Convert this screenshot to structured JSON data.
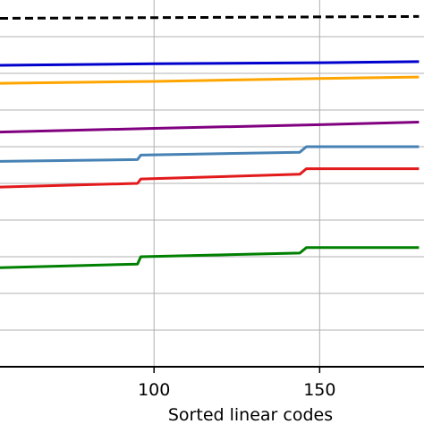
{
  "chart_data": {
    "type": "line",
    "xlabel": "Sorted linear codes",
    "ylabel": "",
    "title": "",
    "xlim": [
      53.5,
      181.5
    ],
    "ylim": [
      0,
      1
    ],
    "x_ticks": [
      {
        "value": 100,
        "label": "100"
      },
      {
        "value": 150,
        "label": "150"
      }
    ],
    "y_gridlines": [
      0.1,
      0.2,
      0.3,
      0.4,
      0.5,
      0.6,
      0.7,
      0.8,
      0.9
    ],
    "grid": true,
    "legend": "none",
    "series": [
      {
        "color": "#000000",
        "dash": true,
        "points": [
          [
            53.5,
            0.95
          ],
          [
            180,
            0.955
          ]
        ]
      },
      {
        "color": "#0000cc",
        "points": [
          [
            53.5,
            0.822
          ],
          [
            100,
            0.826
          ],
          [
            150,
            0.829
          ],
          [
            180,
            0.832
          ]
        ]
      },
      {
        "color": "#ffa500",
        "points": [
          [
            53.5,
            0.773
          ],
          [
            100,
            0.778
          ],
          [
            150,
            0.786
          ],
          [
            180,
            0.79
          ]
        ]
      },
      {
        "color": "#800080",
        "points": [
          [
            53.5,
            0.64
          ],
          [
            100,
            0.65
          ],
          [
            150,
            0.66
          ],
          [
            180,
            0.667
          ]
        ]
      },
      {
        "color": "#4682b4",
        "points": [
          [
            53.5,
            0.56
          ],
          [
            95,
            0.565
          ],
          [
            96,
            0.577
          ],
          [
            144,
            0.585
          ],
          [
            146,
            0.6
          ],
          [
            180,
            0.6
          ]
        ]
      },
      {
        "color": "#e31a1c",
        "points": [
          [
            53.5,
            0.49
          ],
          [
            95,
            0.5
          ],
          [
            96,
            0.512
          ],
          [
            144,
            0.525
          ],
          [
            146,
            0.54
          ],
          [
            180,
            0.54
          ]
        ]
      },
      {
        "color": "#008000",
        "points": [
          [
            53.5,
            0.27
          ],
          [
            95,
            0.28
          ],
          [
            96,
            0.3
          ],
          [
            144,
            0.31
          ],
          [
            146,
            0.325
          ],
          [
            180,
            0.325
          ]
        ]
      }
    ]
  }
}
